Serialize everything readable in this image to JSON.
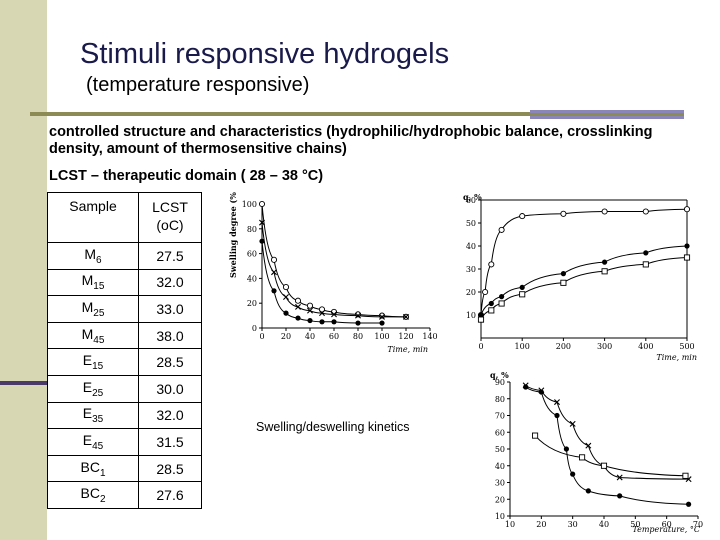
{
  "slide": {
    "title": "Stimuli responsive hydrogels",
    "subtitle": "(temperature responsive)",
    "body": "controlled structure and characteristics (hydrophilic/hydrophobic balance, crosslinking density, amount of thermosensitive chains)",
    "lcst_line": "LCST – therapeutic domain ( 28 – 38 °C)",
    "caption": "Swelling/deswelling kinetics"
  },
  "table": {
    "headers": [
      "Sample",
      "LCST",
      "(oC)"
    ],
    "rows": [
      {
        "base": "M",
        "sub": "6",
        "lcst": "27.5"
      },
      {
        "base": "M",
        "sub": "15",
        "lcst": "32.0"
      },
      {
        "base": "M",
        "sub": "25",
        "lcst": "33.0"
      },
      {
        "base": "M",
        "sub": "45",
        "lcst": "38.0"
      },
      {
        "base": "E",
        "sub": "15",
        "lcst": "28.5"
      },
      {
        "base": "E",
        "sub": "25",
        "lcst": "30.0"
      },
      {
        "base": "E",
        "sub": "35",
        "lcst": "32.0"
      },
      {
        "base": "E",
        "sub": "45",
        "lcst": "31.5"
      },
      {
        "base": "BC",
        "sub": "1",
        "lcst": "28.5"
      },
      {
        "base": "BC",
        "sub": "2",
        "lcst": "27.6"
      }
    ]
  },
  "colors": {
    "side_band": "#d8d7b3",
    "rule": "#8c8a55",
    "rule_accent": "#8a86b8",
    "title": "#1a1a4a"
  },
  "chart_data": [
    {
      "type": "line",
      "ylabel": "Swelling degree (%)",
      "xlabel": "Time, min",
      "xticks": [
        "0",
        "20",
        "40",
        "60",
        "80",
        "100",
        "120",
        "140"
      ],
      "yticks": [
        "0",
        "20",
        "40",
        "60",
        "80",
        "100"
      ],
      "xlim": [
        0,
        140
      ],
      "ylim": [
        0,
        100
      ],
      "series": [
        {
          "marker": "open-circle",
          "x": [
            0,
            10,
            20,
            30,
            40,
            50,
            60,
            80,
            100,
            120
          ],
          "y": [
            100,
            55,
            33,
            22,
            18,
            15,
            13,
            11,
            10,
            9
          ]
        },
        {
          "marker": "x",
          "x": [
            0,
            10,
            20,
            30,
            40,
            50,
            60,
            80,
            100,
            120
          ],
          "y": [
            85,
            45,
            25,
            17,
            14,
            12,
            11,
            10,
            9,
            9
          ]
        },
        {
          "marker": "filled-circle",
          "x": [
            0,
            10,
            20,
            30,
            40,
            50,
            60,
            80,
            100
          ],
          "y": [
            70,
            30,
            12,
            8,
            6,
            5,
            5,
            4,
            4
          ]
        }
      ]
    },
    {
      "type": "line",
      "ylabel": "q, %",
      "xlabel": "Time, min",
      "xticks": [
        "0",
        "100",
        "200",
        "300",
        "400",
        "500"
      ],
      "yticks": [
        "10",
        "20",
        "30",
        "40",
        "50",
        "60"
      ],
      "xlim": [
        0,
        500
      ],
      "ylim": [
        0,
        60
      ],
      "series": [
        {
          "marker": "open-circle",
          "x": [
            0,
            10,
            25,
            50,
            100,
            200,
            300,
            400,
            500
          ],
          "y": [
            10,
            20,
            32,
            47,
            53,
            54,
            55,
            55,
            56
          ]
        },
        {
          "marker": "filled-circle",
          "x": [
            0,
            25,
            50,
            100,
            200,
            300,
            400,
            500
          ],
          "y": [
            10,
            15,
            18,
            22,
            28,
            33,
            37,
            40
          ]
        },
        {
          "marker": "open-square",
          "x": [
            0,
            25,
            50,
            100,
            200,
            300,
            400,
            500
          ],
          "y": [
            8,
            12,
            15,
            19,
            24,
            29,
            32,
            35
          ]
        }
      ]
    },
    {
      "type": "line",
      "ylabel": "q, %",
      "xlabel": "Temperature, °C",
      "xticks": [
        "10",
        "20",
        "30",
        "40",
        "50",
        "60",
        "70"
      ],
      "yticks": [
        "10",
        "20",
        "30",
        "40",
        "50",
        "60",
        "70",
        "80",
        "90"
      ],
      "xlim": [
        10,
        70
      ],
      "ylim": [
        10,
        90
      ],
      "series": [
        {
          "marker": "x",
          "x": [
            15,
            20,
            25,
            30,
            35,
            40,
            45,
            67
          ],
          "y": [
            88,
            85,
            78,
            65,
            52,
            40,
            33,
            32
          ]
        },
        {
          "marker": "filled-circle",
          "x": [
            15,
            20,
            25,
            28,
            30,
            35,
            45,
            67
          ],
          "y": [
            87,
            84,
            70,
            50,
            35,
            25,
            22,
            17
          ]
        },
        {
          "marker": "open-square",
          "x": [
            18,
            33,
            40,
            66
          ],
          "y": [
            58,
            45,
            40,
            34
          ]
        }
      ]
    }
  ]
}
